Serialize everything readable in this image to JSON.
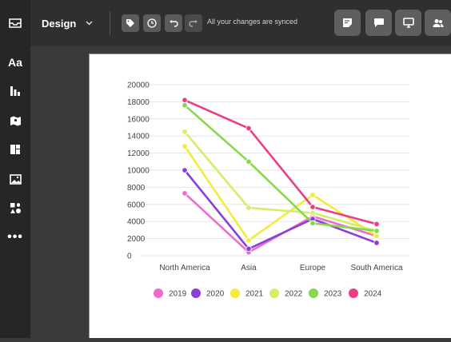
{
  "header": {
    "design_label": "Design",
    "sync_status": "All your changes are synced"
  },
  "colors": {
    "2019": "#f06bd0",
    "2020": "#8a3fd8",
    "2021": "#f2ec3a",
    "2022": "#d3ef6a",
    "2023": "#88d84e",
    "2024": "#ea3f86"
  },
  "sidebar": {
    "items": [
      {
        "icon": "text-icon",
        "label": "Aa"
      },
      {
        "icon": "chart-icon"
      },
      {
        "icon": "map-icon"
      },
      {
        "icon": "layout-icon"
      },
      {
        "icon": "image-icon"
      },
      {
        "icon": "shapes-icon"
      },
      {
        "icon": "more-icon",
        "label": "•••"
      }
    ]
  },
  "chart_data": {
    "type": "line",
    "categories": [
      "North America",
      "Asia",
      "Europe",
      "South America"
    ],
    "y_ticks": [
      "20000",
      "18000",
      "16000",
      "14000",
      "12000",
      "10000",
      "8000",
      "6000",
      "4000",
      "2000",
      "0"
    ],
    "ylim": [
      0,
      20000
    ],
    "grid": true,
    "legend_position": "bottom",
    "series": [
      {
        "name": "2019",
        "values": [
          7300,
          400,
          4600,
          2300
        ]
      },
      {
        "name": "2020",
        "values": [
          10000,
          800,
          4300,
          1500
        ]
      },
      {
        "name": "2021",
        "values": [
          12800,
          1800,
          7100,
          2300
        ]
      },
      {
        "name": "2022",
        "values": [
          14500,
          5600,
          5000,
          2900
        ]
      },
      {
        "name": "2023",
        "values": [
          17600,
          11000,
          3800,
          2900
        ]
      },
      {
        "name": "2024",
        "values": [
          18200,
          14900,
          5700,
          3700
        ]
      }
    ]
  }
}
